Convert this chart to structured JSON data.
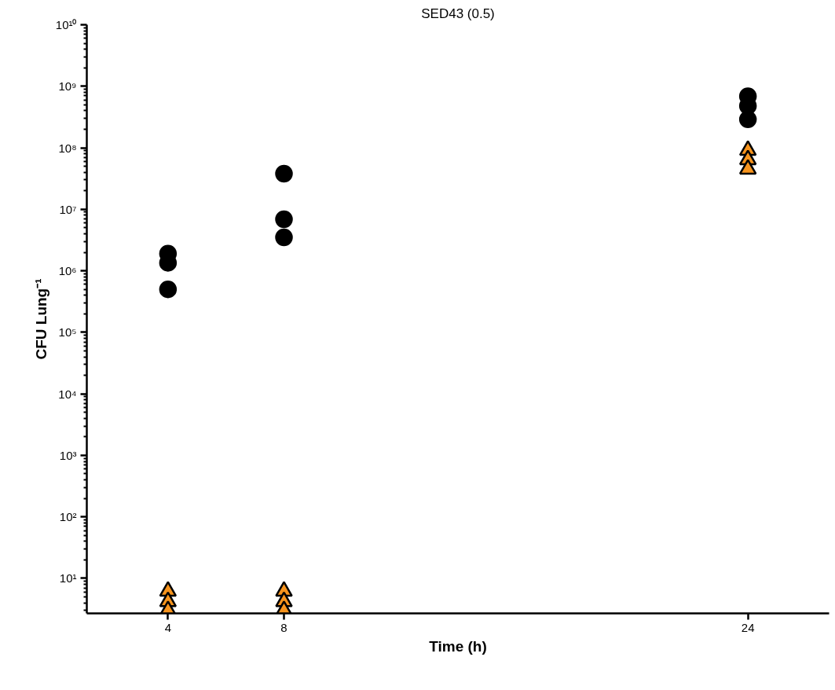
{
  "chart_data": {
    "type": "scatter",
    "title": "SED43 (0.5)",
    "xlabel": "Time (h)",
    "ylabel": "CFU Lung⁻¹",
    "log": "y",
    "grid": false,
    "xlim": [
      1.2,
      26.8
    ],
    "xticks": [
      4,
      8,
      24
    ],
    "ylim": [
      2.7,
      10000000000
    ],
    "yticks": [
      {
        "value": 10,
        "label": "10¹"
      },
      {
        "value": 100,
        "label": "10²"
      },
      {
        "value": 1000,
        "label": "10³"
      },
      {
        "value": 10000,
        "label": "10⁴"
      },
      {
        "value": 100000,
        "label": "10⁵"
      },
      {
        "value": 1000000,
        "label": "10⁶"
      },
      {
        "value": 10000000,
        "label": "10⁷"
      },
      {
        "value": 100000000,
        "label": "10⁸"
      },
      {
        "value": 1000000000,
        "label": "10⁹"
      },
      {
        "value": 10000000000,
        "label": "10¹⁰"
      }
    ],
    "series": [
      {
        "color": "#000000",
        "marker": "circle",
        "x": [
          4,
          4,
          4,
          8,
          8,
          8,
          24,
          24,
          24
        ],
        "values": [
          1900000,
          1350000,
          500000,
          38000000,
          6900000,
          3500000,
          690000000,
          480000000,
          290000000
        ]
      },
      {
        "color": "#f7941d",
        "marker": "triangle",
        "x": [
          4,
          4,
          4,
          8,
          8,
          8,
          24,
          24,
          24
        ],
        "values": [
          6.2,
          4.2,
          3.0,
          6.2,
          4.2,
          3.0,
          91000000,
          64000000,
          45000000
        ]
      }
    ]
  }
}
